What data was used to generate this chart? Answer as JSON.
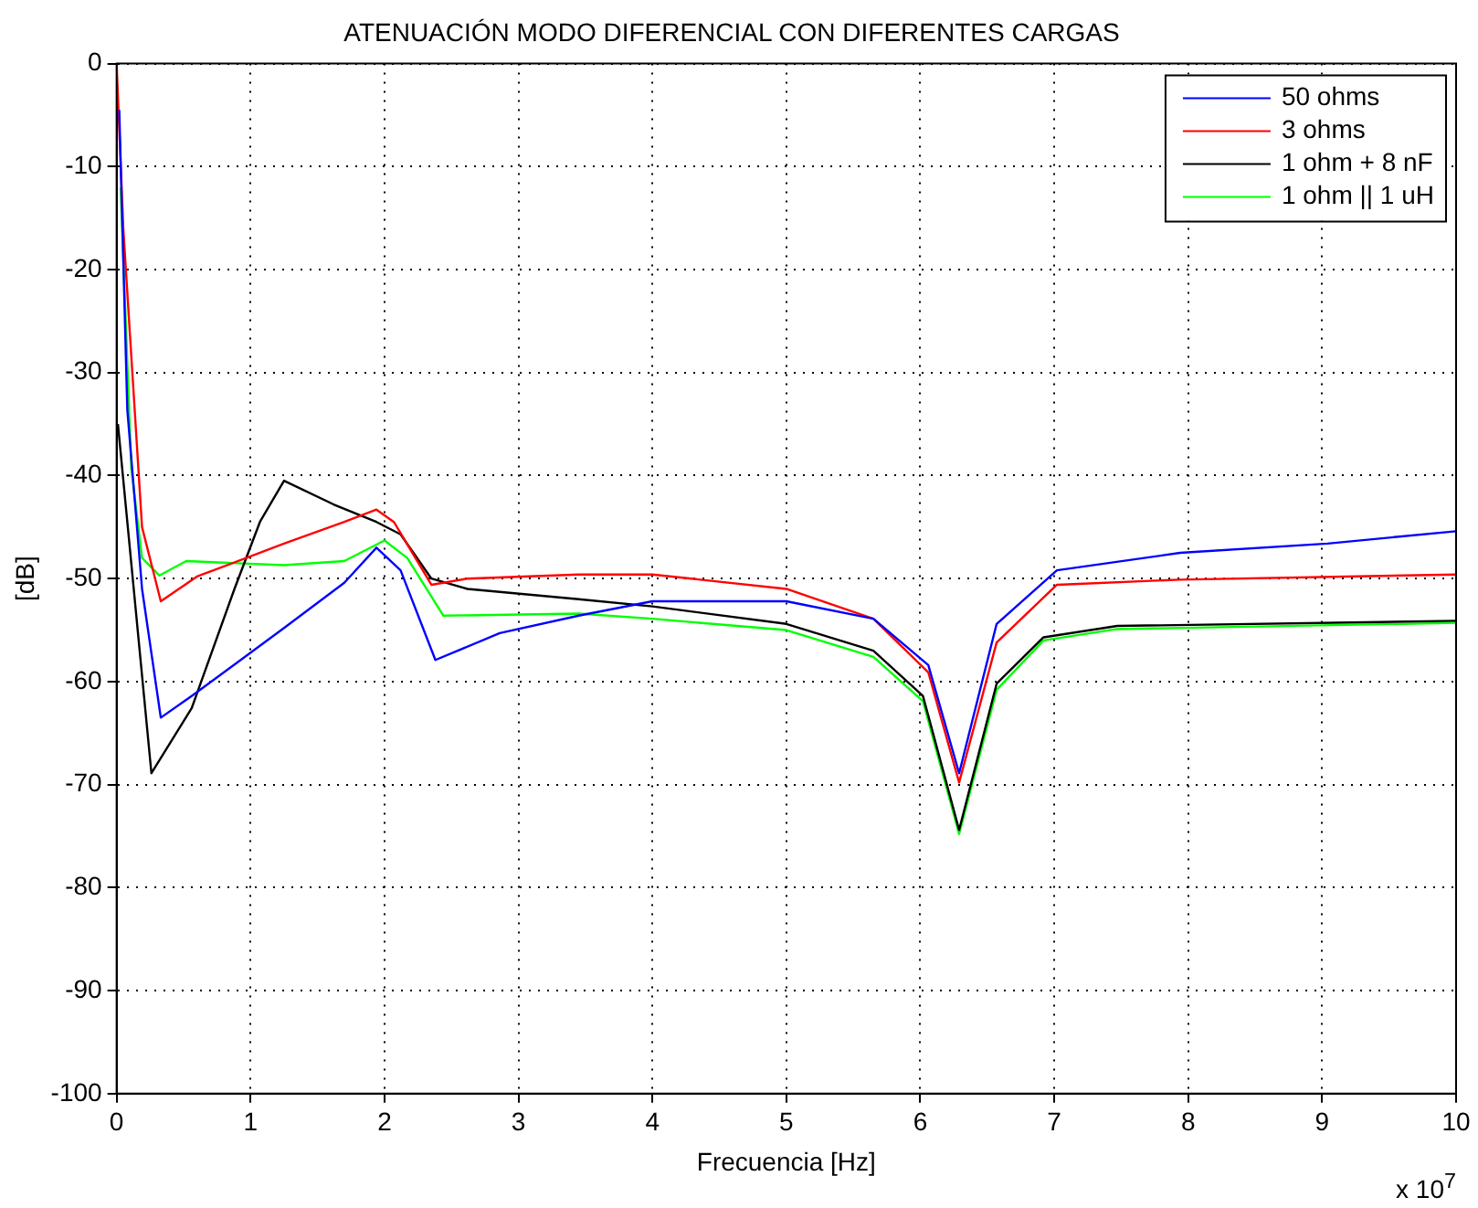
{
  "chart_data": {
    "type": "line",
    "title": "ATENUACIÓN MODO DIFERENCIAL CON DIFERENTES CARGAS",
    "xlabel": "Frecuencia [Hz]",
    "ylabel": "[dB]",
    "annotations": [
      "x 10$^{7}$"
    ],
    "xlim": [
      0,
      10
    ],
    "xticks": [
      0,
      1,
      2,
      3,
      4,
      5,
      6,
      7,
      8,
      9,
      10
    ],
    "ylim": [
      -100,
      0
    ],
    "yticks": [
      -100,
      -90,
      -80,
      -70,
      -60,
      -50,
      -40,
      -30,
      -20,
      -10,
      0
    ],
    "grid": true,
    "legend": "top right",
    "marker": "none",
    "line_style": "solid",
    "series": [
      {
        "name": "50 ohms",
        "color": "#0000ff",
        "x": [
          0.02,
          0.08,
          0.19,
          0.33,
          0.56,
          1.25,
          1.7,
          1.94,
          2.12,
          2.38,
          2.86,
          3.45,
          4,
          5,
          5.65,
          6.06,
          6.29,
          6.57,
          7.02,
          7.94,
          9.04,
          10
        ],
        "values": [
          -4.5,
          -33.6,
          -51,
          -63.5,
          -61.4,
          -54.8,
          -50.4,
          -47,
          -49.2,
          -57.9,
          -55.3,
          -53.6,
          -52.2,
          -52.2,
          -53.9,
          -58.4,
          -68.9,
          -54.4,
          -49.2,
          -47.5,
          -46.6,
          -45.4
        ]
      },
      {
        "name": "3 ohms",
        "color": "#ff0000",
        "x": [
          0,
          0.05,
          0.19,
          0.33,
          0.6,
          1.25,
          1.7,
          1.94,
          2.07,
          2.35,
          2.62,
          3.45,
          4,
          5,
          5.65,
          6.06,
          6.29,
          6.57,
          7.02,
          7.94,
          10
        ],
        "values": [
          0,
          -16,
          -45,
          -52.2,
          -49.8,
          -46.6,
          -44.5,
          -43.3,
          -44.5,
          -50.6,
          -50,
          -49.6,
          -49.6,
          -51,
          -53.9,
          -59.1,
          -69.8,
          -56.2,
          -50.6,
          -50.1,
          -49.6
        ]
      },
      {
        "name": "1 ohm + 8 nF",
        "color": "#000000",
        "x": [
          0.01,
          0.26,
          0.56,
          0.88,
          1.07,
          1.25,
          1.62,
          1.94,
          2.12,
          2.35,
          2.62,
          3.45,
          4,
          5,
          5.65,
          6.02,
          6.29,
          6.57,
          6.92,
          7.47,
          10
        ],
        "values": [
          -35,
          -68.9,
          -62.6,
          -51,
          -44.5,
          -40.5,
          -42.8,
          -44.5,
          -45.7,
          -50,
          -51,
          -52,
          -52.7,
          -54.4,
          -57,
          -61.4,
          -74.4,
          -60.2,
          -55.7,
          -54.6,
          -54.1
        ]
      },
      {
        "name": "1 ohm || 1 uH",
        "color": "#00ff00",
        "x": [
          0.03,
          0.11,
          0.19,
          0.32,
          0.52,
          1.25,
          1.7,
          2,
          2.17,
          2.44,
          3.45,
          4,
          5,
          5.65,
          6.02,
          6.29,
          6.57,
          6.92,
          7.47,
          10
        ],
        "values": [
          -12,
          -39.3,
          -48,
          -49.7,
          -48.3,
          -48.7,
          -48.3,
          -46.3,
          -48,
          -53.6,
          -53.4,
          -53.9,
          -55,
          -57.6,
          -61.9,
          -74.8,
          -60.8,
          -56,
          -54.9,
          -54.3
        ]
      }
    ]
  }
}
